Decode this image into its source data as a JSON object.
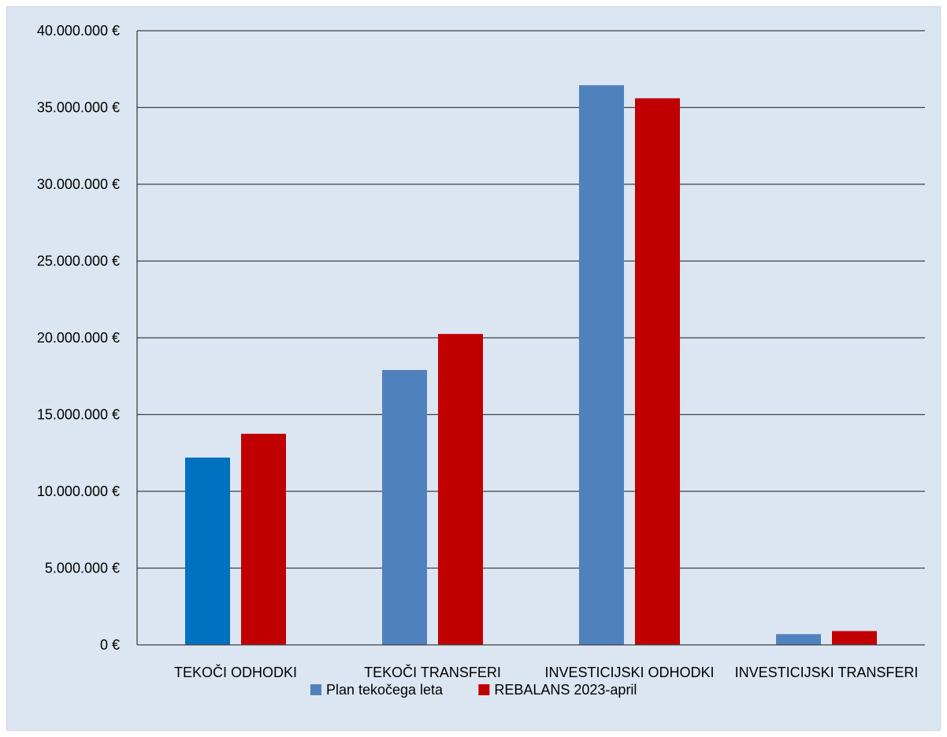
{
  "chart_data": {
    "type": "bar",
    "categories": [
      "TEKOČI ODHODKI",
      "TEKOČI TRANSFERI",
      "INVESTICIJSKI ODHODKI",
      "INVESTICIJSKI TRANSFERI"
    ],
    "series": [
      {
        "name": "Plan tekočega leta",
        "color": "#4f81bd",
        "values": [
          12200000,
          17900000,
          36450000,
          700000
        ],
        "point_colors": [
          "#0070c0",
          null,
          null,
          null
        ]
      },
      {
        "name": "REBALANS 2023-april",
        "color": "#c00000",
        "values": [
          13750000,
          20250000,
          35600000,
          900000
        ]
      }
    ],
    "y_ticks": [
      "0 €",
      "5.000.000 €",
      "10.000.000 €",
      "15.000.000 €",
      "20.000.000 €",
      "25.000.000 €",
      "30.000.000 €",
      "35.000.000 €",
      "40.000.000 €"
    ],
    "ylim": [
      0,
      40000000
    ],
    "y_step": 5000000,
    "grid": true,
    "legend_position": "bottom",
    "background_color": "#dce6f2",
    "title": "",
    "xlabel": "",
    "ylabel": ""
  }
}
